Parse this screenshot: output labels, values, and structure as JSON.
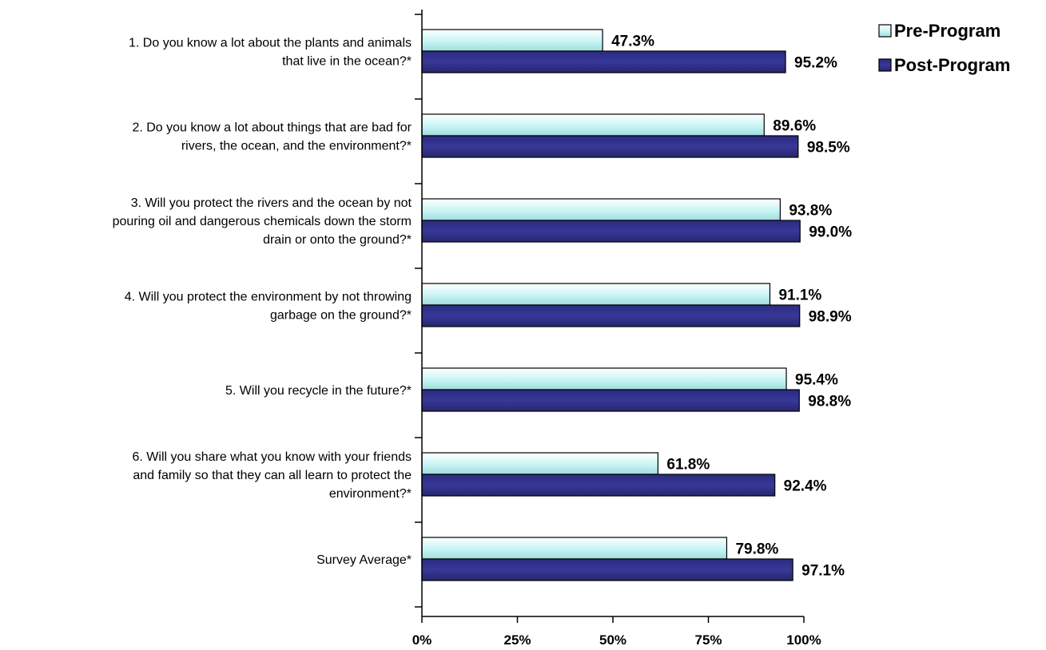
{
  "chart_data": {
    "type": "bar",
    "orientation": "horizontal",
    "categories": [
      [
        "1. Do you know a lot about the plants and animals",
        "that live in the ocean?*"
      ],
      [
        "2. Do you know a lot about things that are bad for",
        "rivers, the ocean, and the environment?*"
      ],
      [
        "3. Will you protect the rivers and the ocean by not",
        "pouring oil and dangerous chemicals down the storm",
        "drain or onto the ground?*"
      ],
      [
        "4. Will you protect the environment by not throwing",
        "garbage on the ground?*"
      ],
      [
        "5. Will you recycle in the future?*"
      ],
      [
        "6. Will you share what you know with your friends",
        "and family so that they can all learn to protect the",
        "environment?*"
      ],
      [
        "Survey Average*"
      ]
    ],
    "series": [
      {
        "name": "Pre-Program",
        "values": [
          47.3,
          89.6,
          93.8,
          91.1,
          95.4,
          61.8,
          79.8
        ],
        "labels": [
          "47.3%",
          "89.6%",
          "93.8%",
          "91.1%",
          "95.4%",
          "61.8%",
          "79.8%"
        ],
        "color": "#ccffff"
      },
      {
        "name": "Post-Program",
        "values": [
          95.2,
          98.5,
          99.0,
          98.9,
          98.8,
          92.4,
          97.1
        ],
        "labels": [
          "95.2%",
          "98.5%",
          "99.0%",
          "98.9%",
          "98.8%",
          "92.4%",
          "97.1%"
        ],
        "color": "#333399"
      }
    ],
    "xlim": [
      0,
      100
    ],
    "xticks": [
      0,
      25,
      50,
      75,
      100
    ],
    "xtick_labels": [
      "0%",
      "25%",
      "50%",
      "75%",
      "100%"
    ],
    "grid": false,
    "legend_position": "top-right"
  }
}
